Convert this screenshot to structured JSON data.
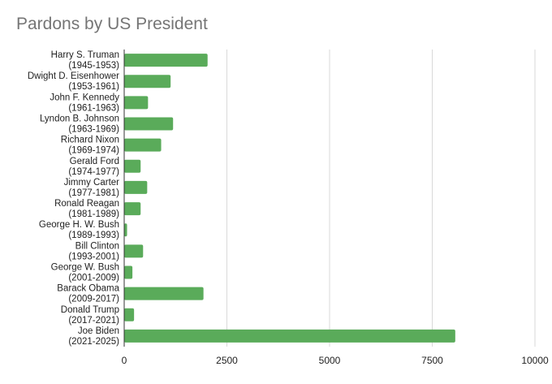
{
  "chart_data": {
    "type": "bar",
    "orientation": "horizontal",
    "title": "Pardons by US President",
    "xlabel": "",
    "ylabel": "",
    "categories": [
      [
        "Harry S. Truman",
        "(1945-1953)"
      ],
      [
        "Dwight D. Eisenhower",
        "(1953-1961)"
      ],
      [
        "John F. Kennedy",
        "(1961-1963)"
      ],
      [
        "Lyndon B. Johnson",
        "(1963-1969)"
      ],
      [
        "Richard Nixon",
        "(1969-1974)"
      ],
      [
        "Gerald Ford",
        "(1974-1977)"
      ],
      [
        "Jimmy Carter",
        "(1977-1981)"
      ],
      [
        "Ronald Reagan",
        "(1981-1989)"
      ],
      [
        "George H. W. Bush",
        "(1989-1993)"
      ],
      [
        "Bill Clinton",
        "(1993-2001)"
      ],
      [
        "George W. Bush",
        "(2001-2009)"
      ],
      [
        "Barack Obama",
        "(2009-2017)"
      ],
      [
        "Donald Trump",
        "(2017-2021)"
      ],
      [
        "Joe Biden",
        "(2021-2025)"
      ]
    ],
    "values": [
      2030,
      1130,
      580,
      1190,
      900,
      400,
      560,
      400,
      70,
      460,
      200,
      1930,
      240,
      8060
    ],
    "xlim": [
      0,
      10000
    ],
    "xticks": [
      0,
      2500,
      5000,
      7500,
      10000
    ],
    "grid": true,
    "legend": "none",
    "bar_color": "#5aab5a"
  }
}
